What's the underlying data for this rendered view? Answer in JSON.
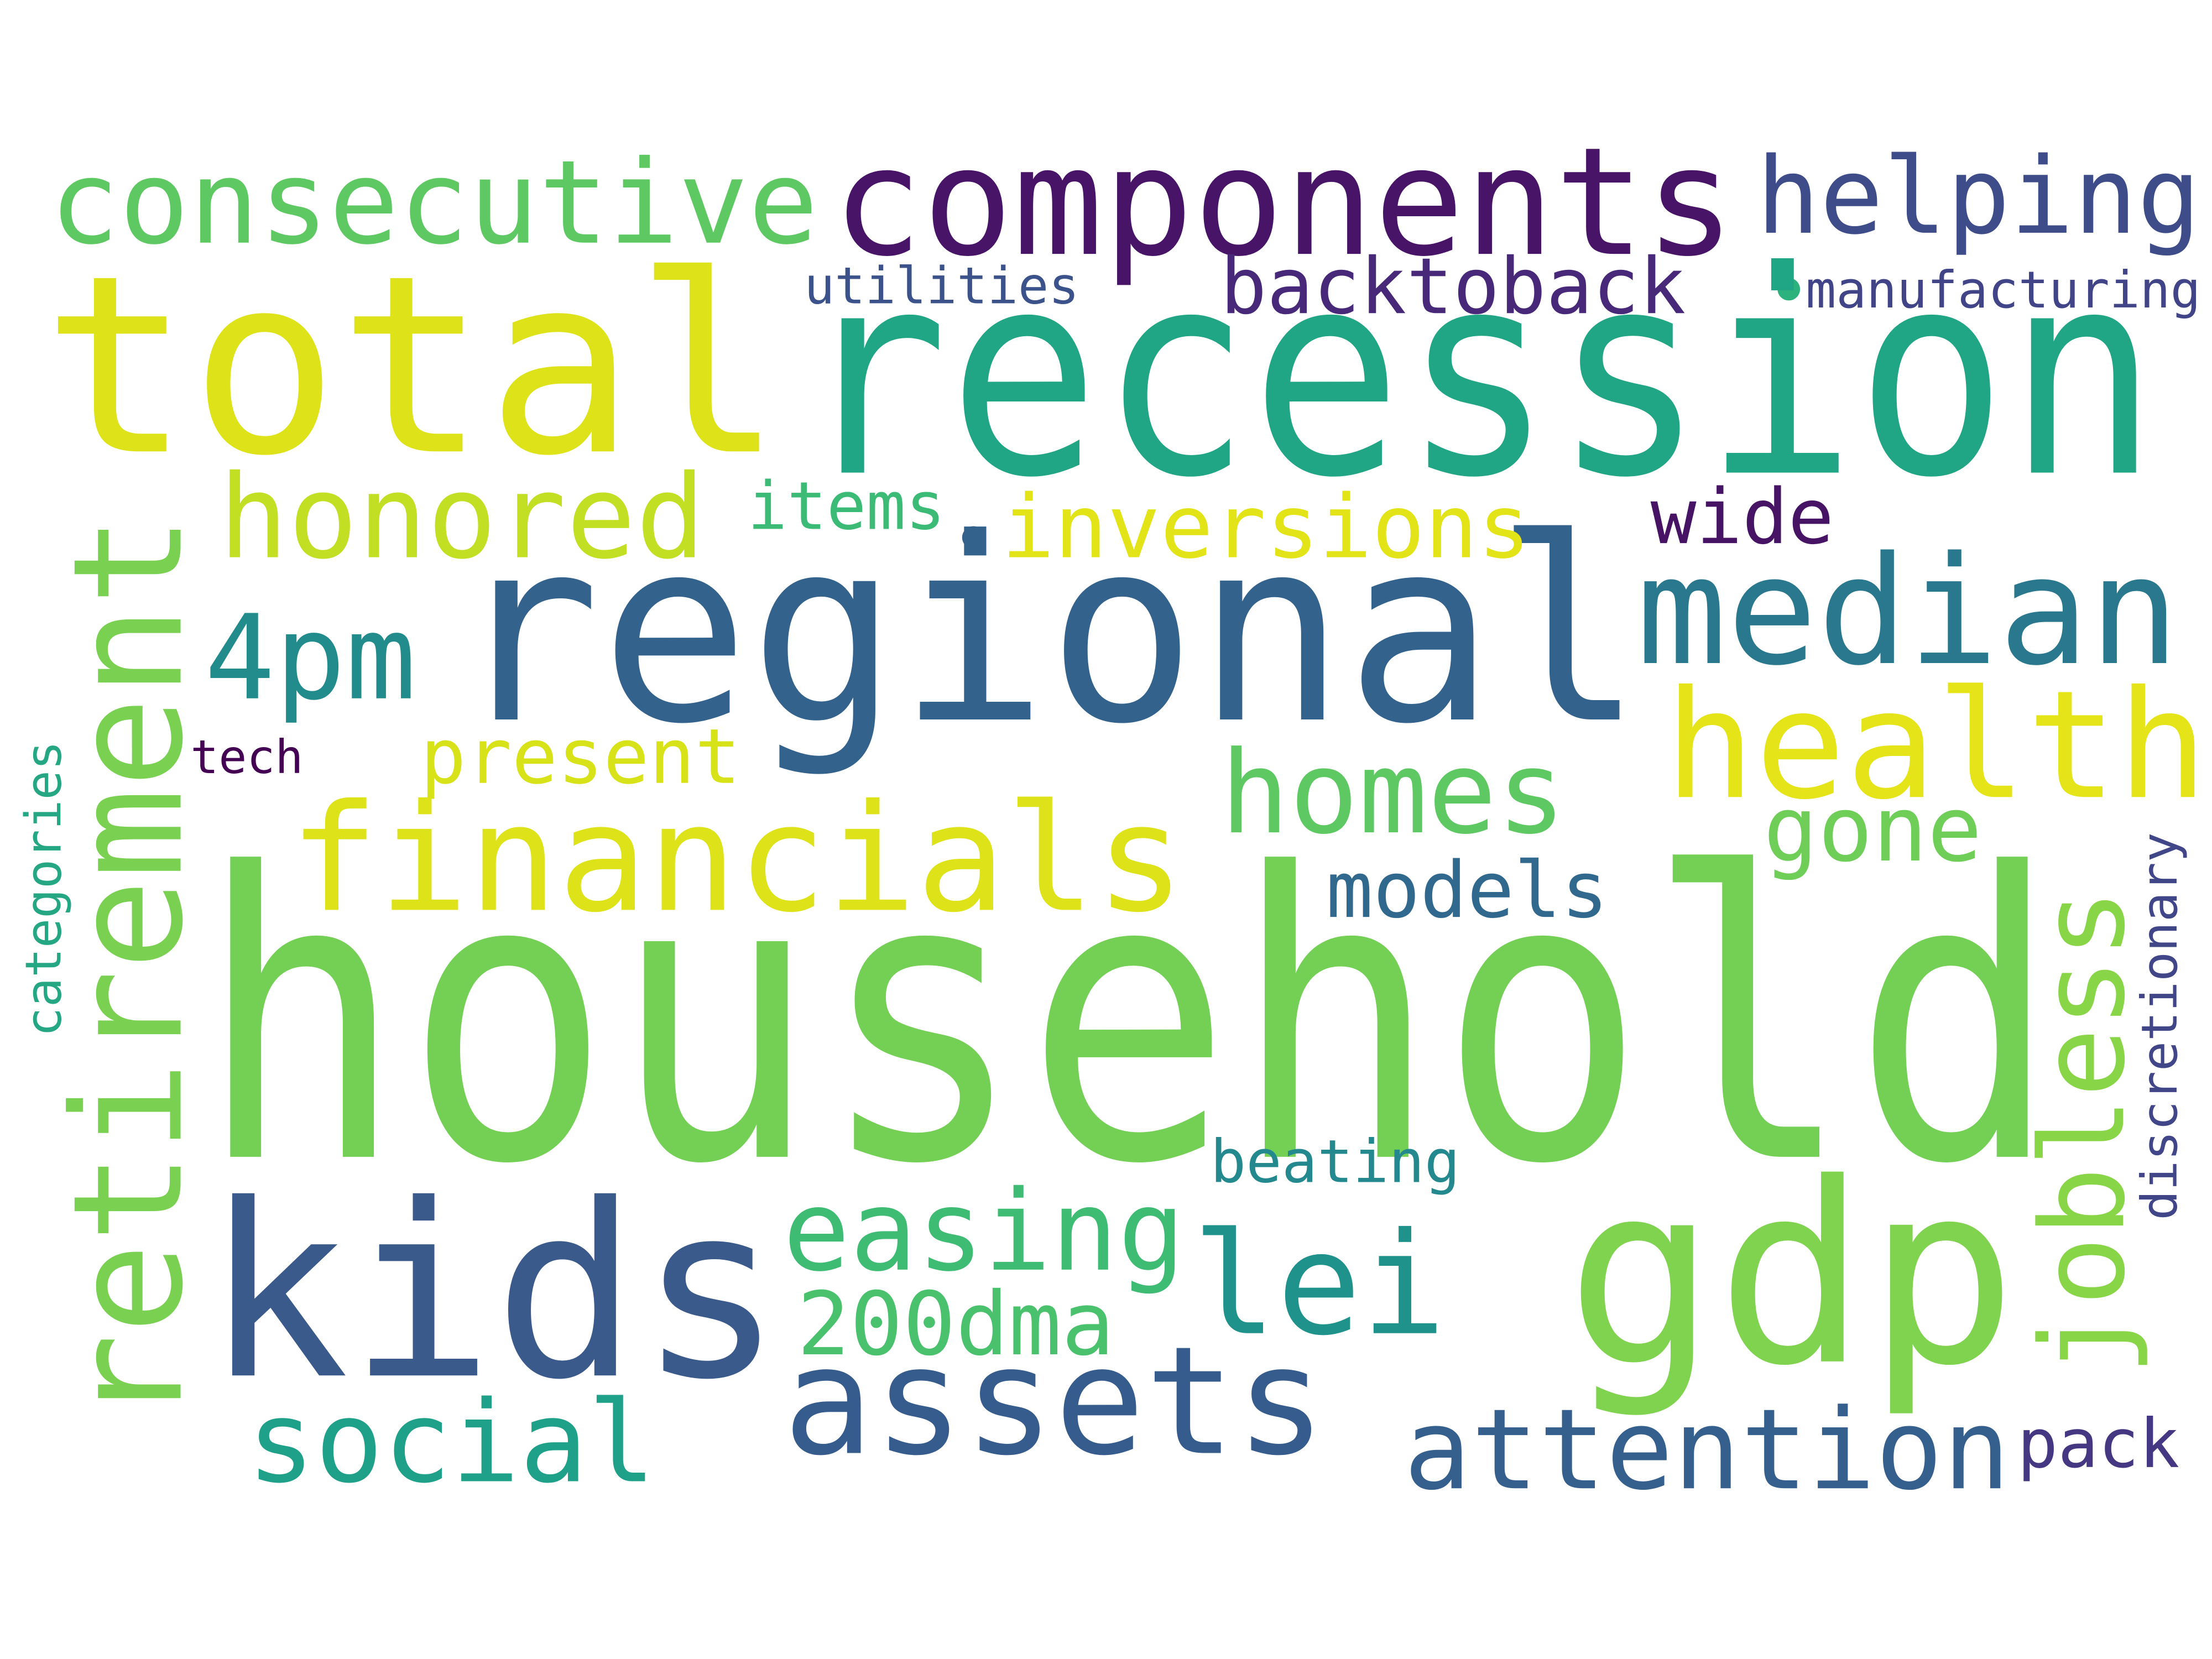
{
  "words": [
    {
      "text": "household",
      "color": "#73d055"
    },
    {
      "text": "recession",
      "color": "#21a685"
    },
    {
      "text": "total",
      "color": "#dde318"
    },
    {
      "text": "regional",
      "color": "#33638d"
    },
    {
      "text": "components",
      "color": "#481467"
    },
    {
      "text": "consecutive",
      "color": "#5ec962"
    },
    {
      "text": "helping",
      "color": "#3e4c8a"
    },
    {
      "text": "utilities",
      "color": "#3b528b"
    },
    {
      "text": "backtoback",
      "color": "#482878"
    },
    {
      "text": "manufacturing",
      "color": "#414487"
    },
    {
      "text": "honored",
      "color": "#c2df23"
    },
    {
      "text": "items",
      "color": "#3bbb75"
    },
    {
      "text": "inversions",
      "color": "#e2e418"
    },
    {
      "text": "wide",
      "color": "#471365"
    },
    {
      "text": "median",
      "color": "#2a788e"
    },
    {
      "text": "4pm",
      "color": "#228c8d"
    },
    {
      "text": "retirement",
      "color": "#7ad151"
    },
    {
      "text": "health",
      "color": "#e5e419"
    },
    {
      "text": "tech",
      "color": "#440154"
    },
    {
      "text": "present",
      "color": "#d8e219"
    },
    {
      "text": "categories",
      "color": "#26a784"
    },
    {
      "text": "financials",
      "color": "#dde318"
    },
    {
      "text": "homes",
      "color": "#5ec962"
    },
    {
      "text": "gone",
      "color": "#6ece58"
    },
    {
      "text": "models",
      "color": "#31688e"
    },
    {
      "text": "discretionary",
      "color": "#404688"
    },
    {
      "text": "jobless",
      "color": "#89d548"
    },
    {
      "text": "beating",
      "color": "#23898e"
    },
    {
      "text": "kids",
      "color": "#3b5a8c"
    },
    {
      "text": "easing",
      "color": "#3fbc73"
    },
    {
      "text": "lei",
      "color": "#20928c"
    },
    {
      "text": "gdp",
      "color": "#7fd34e"
    },
    {
      "text": "200dma",
      "color": "#4ac16d"
    },
    {
      "text": "assets",
      "color": "#365c8d"
    },
    {
      "text": "social",
      "color": "#1fa088"
    },
    {
      "text": "attention",
      "color": "#355f8d"
    },
    {
      "text": "pack",
      "color": "#453781"
    }
  ]
}
